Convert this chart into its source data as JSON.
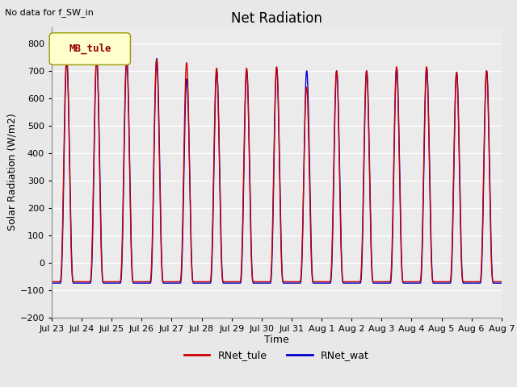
{
  "title": "Net Radiation",
  "xlabel": "Time",
  "ylabel": "Solar Radiation (W/m2)",
  "top_left_text": "No data for f_SW_in",
  "legend_box_label": "MB_tule",
  "ylim": [
    -200,
    860
  ],
  "yticks": [
    -200,
    -100,
    0,
    100,
    200,
    300,
    400,
    500,
    600,
    700,
    800
  ],
  "line1_label": "RNet_tule",
  "line1_color": "#cc0000",
  "line2_label": "RNet_wat",
  "line2_color": "#0000cc",
  "background_color": "#e8e8e8",
  "axes_bg_color": "#ebebeb",
  "grid_color": "white",
  "x_tick_labels": [
    "Jul 23",
    "Jul 24",
    "Jul 25",
    "Jul 26",
    "Jul 27",
    "Jul 28",
    "Jul 29",
    "Jul 30",
    "Jul 31",
    "Aug 1",
    "Aug 2",
    "Aug 3",
    "Aug 4",
    "Aug 5",
    "Aug 6",
    "Aug 7"
  ],
  "num_days": 15,
  "night_value": -70,
  "day_peaks_tule": [
    750,
    745,
    745,
    740,
    730,
    710,
    710,
    715,
    640,
    700,
    700,
    715,
    715,
    695,
    700
  ],
  "day_peaks_wat": [
    735,
    740,
    740,
    745,
    670,
    700,
    700,
    710,
    700,
    700,
    700,
    710,
    710,
    695,
    700
  ],
  "title_fontsize": 12,
  "axis_label_fontsize": 9,
  "tick_fontsize": 8,
  "legend_fontsize": 9,
  "figsize": [
    6.4,
    4.8
  ],
  "dpi": 100
}
